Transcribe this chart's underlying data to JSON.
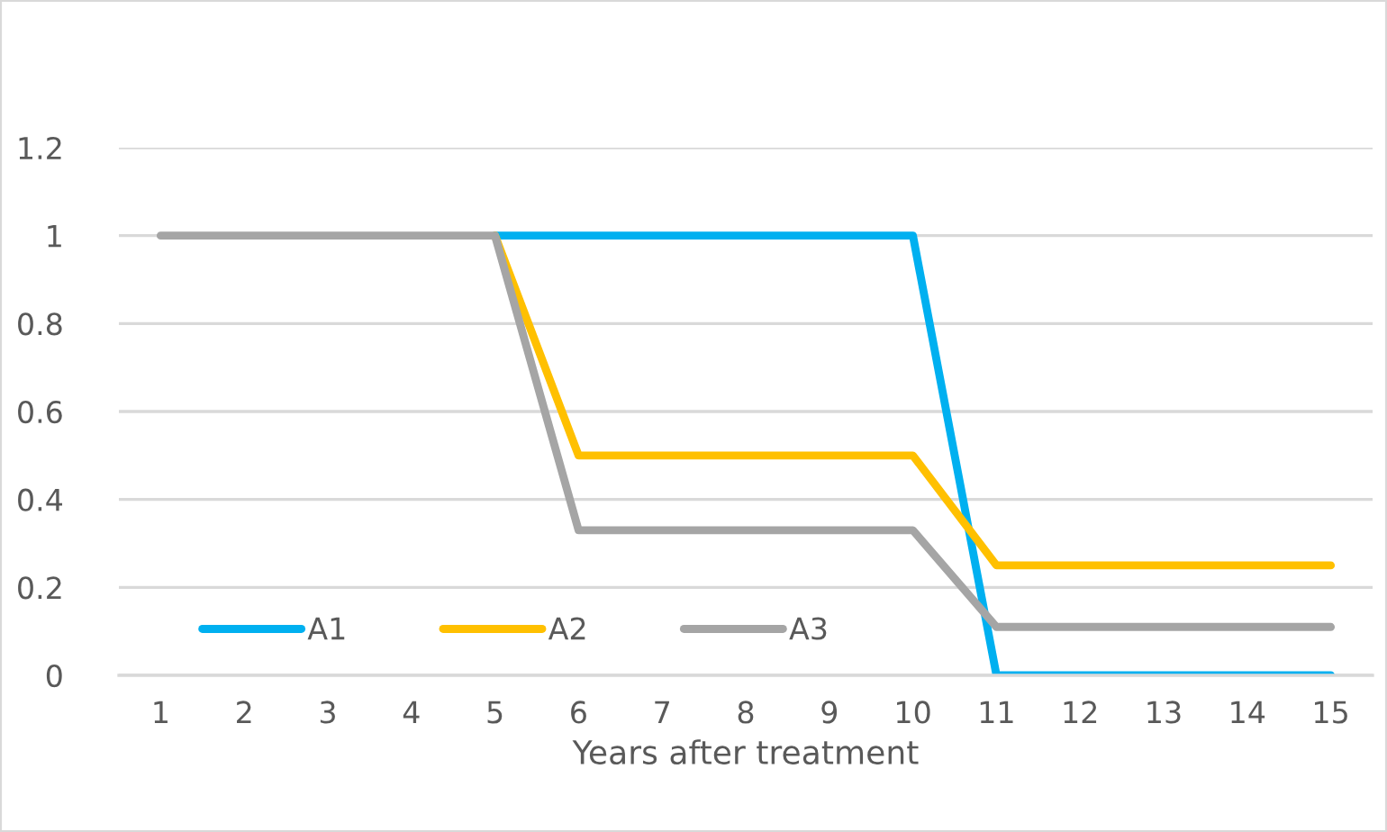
{
  "chart_data": {
    "type": "line",
    "xlabel": "Years after treatment",
    "categories": [
      "1",
      "2",
      "3",
      "4",
      "5",
      "6",
      "7",
      "8",
      "9",
      "10",
      "11",
      "12",
      "13",
      "14",
      "15"
    ],
    "series": [
      {
        "name": "A1",
        "color": "#00b0f0",
        "values": [
          null,
          null,
          null,
          null,
          1,
          1,
          1,
          1,
          1,
          1,
          0,
          0,
          0,
          0,
          0
        ]
      },
      {
        "name": "A2",
        "color": "#ffc000",
        "values": [
          null,
          null,
          null,
          null,
          1,
          0.5,
          0.5,
          0.5,
          0.5,
          0.5,
          0.25,
          0.25,
          0.25,
          0.25,
          0.25
        ]
      },
      {
        "name": "A3",
        "color": "#a5a5a5",
        "values": [
          1,
          1,
          1,
          1,
          1,
          0.33,
          0.33,
          0.33,
          0.33,
          0.33,
          0.11,
          0.11,
          0.11,
          0.11,
          0.11
        ]
      }
    ],
    "ylim": [
      0,
      1.2
    ],
    "yticks": [
      0,
      {
        "value": 0.2,
        "label": "0.2"
      },
      {
        "value": 0.4,
        "label": "0.4"
      },
      {
        "value": 0.6,
        "label": "0.6"
      },
      {
        "value": 0.8,
        "label": "0.8"
      },
      1,
      {
        "value": 1.2,
        "label": "1.2"
      }
    ],
    "grid": "y",
    "legend": "bottom left",
    "marker": "none",
    "line_style": "solid"
  }
}
